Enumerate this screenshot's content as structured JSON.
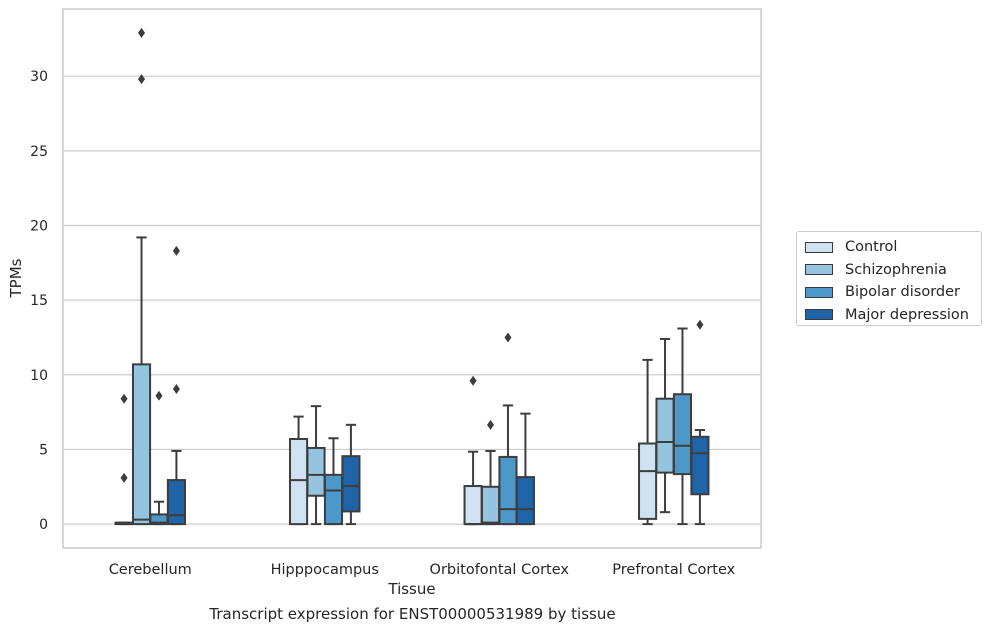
{
  "chart_data": {
    "type": "box",
    "xlabel": "Tissue",
    "ylabel": "TPMs",
    "caption": "Transcript expression for ENST00000531989 by tissue",
    "ylim": [
      -1.6,
      34.5
    ],
    "yticks": [
      0,
      5,
      10,
      15,
      20,
      25,
      30
    ],
    "grid": "horizontal",
    "legend_position": "right",
    "categories": [
      "Cerebellum",
      "Hipppocampus",
      "Orbitofontal Cortex",
      "Prefrontal Cortex"
    ],
    "series": [
      {
        "name": "Control",
        "color": "#d0e1f2",
        "boxes": [
          {
            "whislo": 0.0,
            "q1": 0.0,
            "med": 0.05,
            "q3": 0.1,
            "whishi": 0.1,
            "fliers": [
              3.1,
              8.4
            ]
          },
          {
            "whislo": 0.0,
            "q1": 0.0,
            "med": 2.95,
            "q3": 5.7,
            "whishi": 7.2,
            "fliers": []
          },
          {
            "whislo": 0.0,
            "q1": 0.0,
            "med": 0.0,
            "q3": 2.55,
            "whishi": 4.85,
            "fliers": [
              9.6
            ]
          },
          {
            "whislo": 0.0,
            "q1": 0.35,
            "med": 3.55,
            "q3": 5.4,
            "whishi": 11.0,
            "fliers": []
          }
        ]
      },
      {
        "name": "Schizophrenia",
        "color": "#94c4df",
        "boxes": [
          {
            "whislo": 0.0,
            "q1": 0.0,
            "med": 0.3,
            "q3": 10.7,
            "whishi": 19.2,
            "fliers": [
              29.8,
              32.9
            ]
          },
          {
            "whislo": 0.0,
            "q1": 1.9,
            "med": 3.3,
            "q3": 5.1,
            "whishi": 7.9,
            "fliers": []
          },
          {
            "whislo": 0.0,
            "q1": 0.0,
            "med": 0.1,
            "q3": 2.5,
            "whishi": 4.9,
            "fliers": [
              6.65
            ]
          },
          {
            "whislo": 0.8,
            "q1": 3.45,
            "med": 5.5,
            "q3": 8.4,
            "whishi": 12.4,
            "fliers": []
          }
        ]
      },
      {
        "name": "Bipolar disorder",
        "color": "#4b98c9",
        "boxes": [
          {
            "whislo": 0.0,
            "q1": 0.0,
            "med": 0.1,
            "q3": 0.65,
            "whishi": 1.5,
            "fliers": [
              8.6
            ]
          },
          {
            "whislo": 0.0,
            "q1": 0.0,
            "med": 2.25,
            "q3": 3.3,
            "whishi": 5.75,
            "fliers": []
          },
          {
            "whislo": 0.0,
            "q1": 0.0,
            "med": 1.0,
            "q3": 4.5,
            "whishi": 7.95,
            "fliers": [
              12.5
            ]
          },
          {
            "whislo": 0.0,
            "q1": 3.35,
            "med": 5.25,
            "q3": 8.7,
            "whishi": 13.1,
            "fliers": []
          }
        ]
      },
      {
        "name": "Major depression",
        "color": "#1f63a8",
        "boxes": [
          {
            "whislo": 0.0,
            "q1": 0.0,
            "med": 0.6,
            "q3": 2.95,
            "whishi": 4.9,
            "fliers": [
              9.05,
              18.3
            ]
          },
          {
            "whislo": 0.0,
            "q1": 0.85,
            "med": 2.55,
            "q3": 4.55,
            "whishi": 6.65,
            "fliers": []
          },
          {
            "whislo": 0.0,
            "q1": 0.0,
            "med": 1.0,
            "q3": 3.15,
            "whishi": 7.4,
            "fliers": []
          },
          {
            "whislo": 0.0,
            "q1": 2.0,
            "med": 4.75,
            "q3": 5.85,
            "whishi": 6.3,
            "fliers": [
              13.35
            ]
          }
        ]
      }
    ]
  }
}
